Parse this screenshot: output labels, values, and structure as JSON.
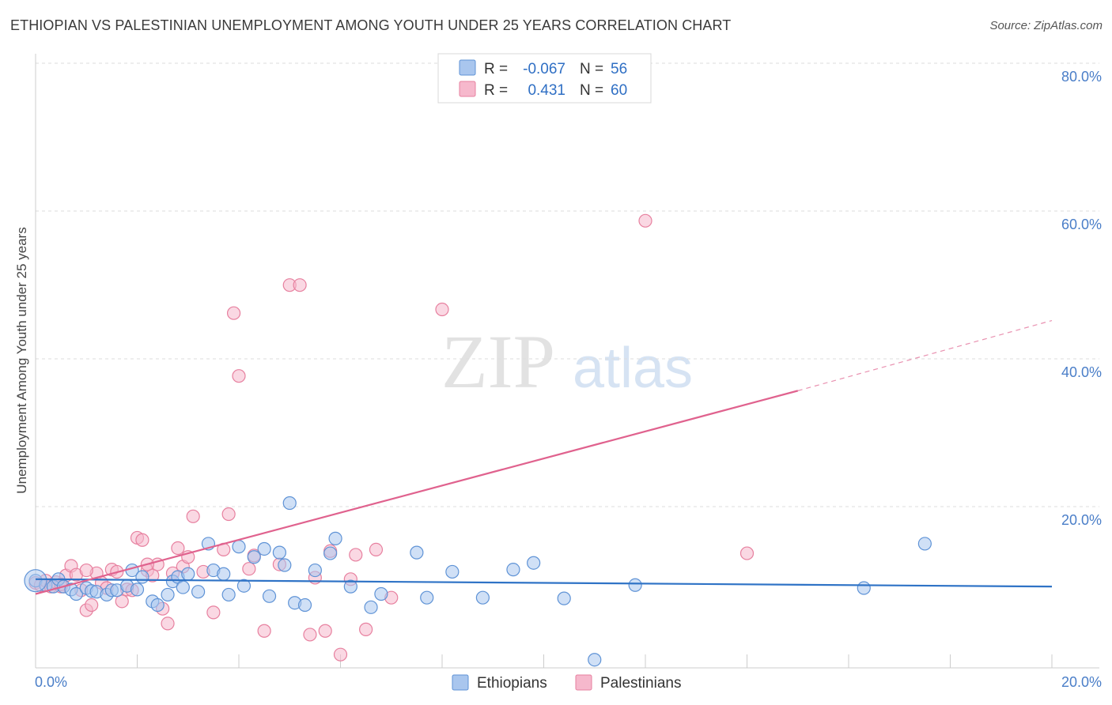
{
  "title": "ETHIOPIAN VS PALESTINIAN UNEMPLOYMENT AMONG YOUTH UNDER 25 YEARS CORRELATION CHART",
  "source": "Source: ZipAtlas.com",
  "watermark": {
    "zip": "ZIP",
    "atlas": "atlas"
  },
  "colors": {
    "ethiopian_fill": "#a9c6ee",
    "ethiopian_stroke": "#5f93d6",
    "ethiopian_line": "#2f73c6",
    "palestinian_fill": "#f6b8cc",
    "palestinian_stroke": "#e7809f",
    "palestinian_line": "#e0628e",
    "axis_text": "#4a7ec8",
    "grid": "#dddddd"
  },
  "legend": {
    "r_label": "R =",
    "n_label": "N =",
    "ethiopians": {
      "r": "-0.067",
      "n": "56"
    },
    "palestinians": {
      "r": "0.431",
      "n": "60"
    }
  },
  "chart_data": {
    "type": "scatter",
    "title": "ETHIOPIAN VS PALESTINIAN UNEMPLOYMENT AMONG YOUTH UNDER 25 YEARS CORRELATION CHART",
    "xlabel": "",
    "ylabel": "Unemployment Among Youth under 25 years",
    "xlim": [
      0,
      20
    ],
    "ylim": [
      0,
      80
    ],
    "x_tick_labels": [
      "0.0%",
      "20.0%"
    ],
    "y_ticks": [
      20,
      40,
      60,
      80
    ],
    "y_tick_labels": [
      "20.0%",
      "40.0%",
      "60.0%",
      "80.0%"
    ],
    "series": [
      {
        "name": "Ethiopians",
        "r": -0.067,
        "n": 56,
        "trend": {
          "x0": 0,
          "y0": 12.0,
          "x1": 20,
          "y1": 11.0
        },
        "points": [
          [
            0.0,
            11.8
          ],
          [
            0.2,
            11.2
          ],
          [
            0.35,
            11.0
          ],
          [
            0.45,
            12.0
          ],
          [
            0.55,
            11.0
          ],
          [
            0.7,
            10.6
          ],
          [
            0.8,
            10.0
          ],
          [
            1.0,
            10.8
          ],
          [
            1.1,
            10.4
          ],
          [
            1.2,
            10.3
          ],
          [
            1.4,
            9.9
          ],
          [
            1.5,
            10.5
          ],
          [
            1.6,
            10.5
          ],
          [
            1.8,
            11.1
          ],
          [
            1.9,
            13.2
          ],
          [
            2.0,
            10.6
          ],
          [
            2.1,
            12.3
          ],
          [
            2.3,
            9.0
          ],
          [
            2.4,
            8.5
          ],
          [
            2.6,
            9.9
          ],
          [
            2.7,
            11.7
          ],
          [
            2.8,
            12.3
          ],
          [
            2.9,
            10.9
          ],
          [
            3.0,
            12.7
          ],
          [
            3.2,
            10.3
          ],
          [
            3.4,
            16.8
          ],
          [
            3.5,
            13.2
          ],
          [
            3.7,
            12.7
          ],
          [
            3.8,
            9.9
          ],
          [
            4.0,
            16.4
          ],
          [
            4.1,
            11.1
          ],
          [
            4.3,
            15.0
          ],
          [
            4.5,
            16.1
          ],
          [
            4.6,
            9.7
          ],
          [
            4.8,
            15.6
          ],
          [
            4.9,
            13.9
          ],
          [
            5.0,
            22.3
          ],
          [
            5.1,
            8.8
          ],
          [
            5.3,
            8.5
          ],
          [
            5.5,
            13.2
          ],
          [
            5.8,
            15.5
          ],
          [
            5.9,
            17.5
          ],
          [
            6.2,
            11.0
          ],
          [
            6.6,
            8.2
          ],
          [
            6.8,
            10.0
          ],
          [
            7.5,
            15.6
          ],
          [
            7.7,
            9.5
          ],
          [
            8.2,
            13.0
          ],
          [
            8.8,
            9.5
          ],
          [
            9.4,
            13.3
          ],
          [
            9.8,
            14.2
          ],
          [
            10.4,
            9.4
          ],
          [
            11.0,
            1.1
          ],
          [
            11.8,
            11.2
          ],
          [
            16.3,
            10.8
          ],
          [
            17.5,
            16.8
          ]
        ]
      },
      {
        "name": "Palestinians",
        "r": 0.431,
        "n": 60,
        "trend": {
          "x0": 0,
          "y0": 10.0,
          "x1": 15.0,
          "y1": 37.5,
          "dash_x1": 20,
          "dash_y1": 47.0
        },
        "points": [
          [
            0.0,
            11.5
          ],
          [
            0.1,
            11.2
          ],
          [
            0.2,
            11.8
          ],
          [
            0.3,
            11.0
          ],
          [
            0.4,
            11.6
          ],
          [
            0.5,
            11.0
          ],
          [
            0.6,
            12.5
          ],
          [
            0.7,
            13.8
          ],
          [
            0.8,
            12.6
          ],
          [
            0.9,
            10.5
          ],
          [
            1.0,
            7.8
          ],
          [
            1.1,
            8.5
          ],
          [
            1.2,
            12.8
          ],
          [
            1.3,
            11.5
          ],
          [
            1.4,
            10.8
          ],
          [
            1.5,
            13.3
          ],
          [
            1.6,
            13.0
          ],
          [
            1.7,
            9.0
          ],
          [
            1.8,
            10.6
          ],
          [
            1.9,
            10.5
          ],
          [
            2.0,
            17.6
          ],
          [
            2.1,
            17.3
          ],
          [
            2.2,
            13.2
          ],
          [
            2.3,
            12.5
          ],
          [
            2.4,
            14.0
          ],
          [
            2.5,
            8.0
          ],
          [
            2.6,
            6.0
          ],
          [
            2.7,
            12.8
          ],
          [
            2.8,
            16.2
          ],
          [
            2.9,
            13.7
          ],
          [
            3.0,
            15.0
          ],
          [
            3.1,
            20.5
          ],
          [
            3.3,
            13.0
          ],
          [
            3.5,
            7.5
          ],
          [
            3.7,
            16.0
          ],
          [
            3.8,
            20.8
          ],
          [
            3.9,
            48.0
          ],
          [
            4.0,
            39.5
          ],
          [
            4.2,
            13.4
          ],
          [
            4.3,
            15.2
          ],
          [
            4.5,
            5.0
          ],
          [
            4.8,
            14.0
          ],
          [
            5.0,
            51.8
          ],
          [
            5.2,
            51.8
          ],
          [
            5.4,
            4.5
          ],
          [
            5.5,
            12.2
          ],
          [
            5.7,
            5.0
          ],
          [
            5.8,
            15.8
          ],
          [
            6.0,
            1.8
          ],
          [
            6.2,
            12.0
          ],
          [
            6.3,
            15.3
          ],
          [
            6.5,
            5.2
          ],
          [
            6.7,
            16.0
          ],
          [
            7.0,
            9.5
          ],
          [
            8.0,
            48.5
          ],
          [
            12.0,
            60.5
          ],
          [
            14.0,
            15.5
          ],
          [
            2.2,
            14.0
          ],
          [
            1.0,
            13.2
          ],
          [
            0.5,
            11.3
          ]
        ]
      }
    ]
  },
  "bottom_legend": [
    "Ethiopians",
    "Palestinians"
  ]
}
